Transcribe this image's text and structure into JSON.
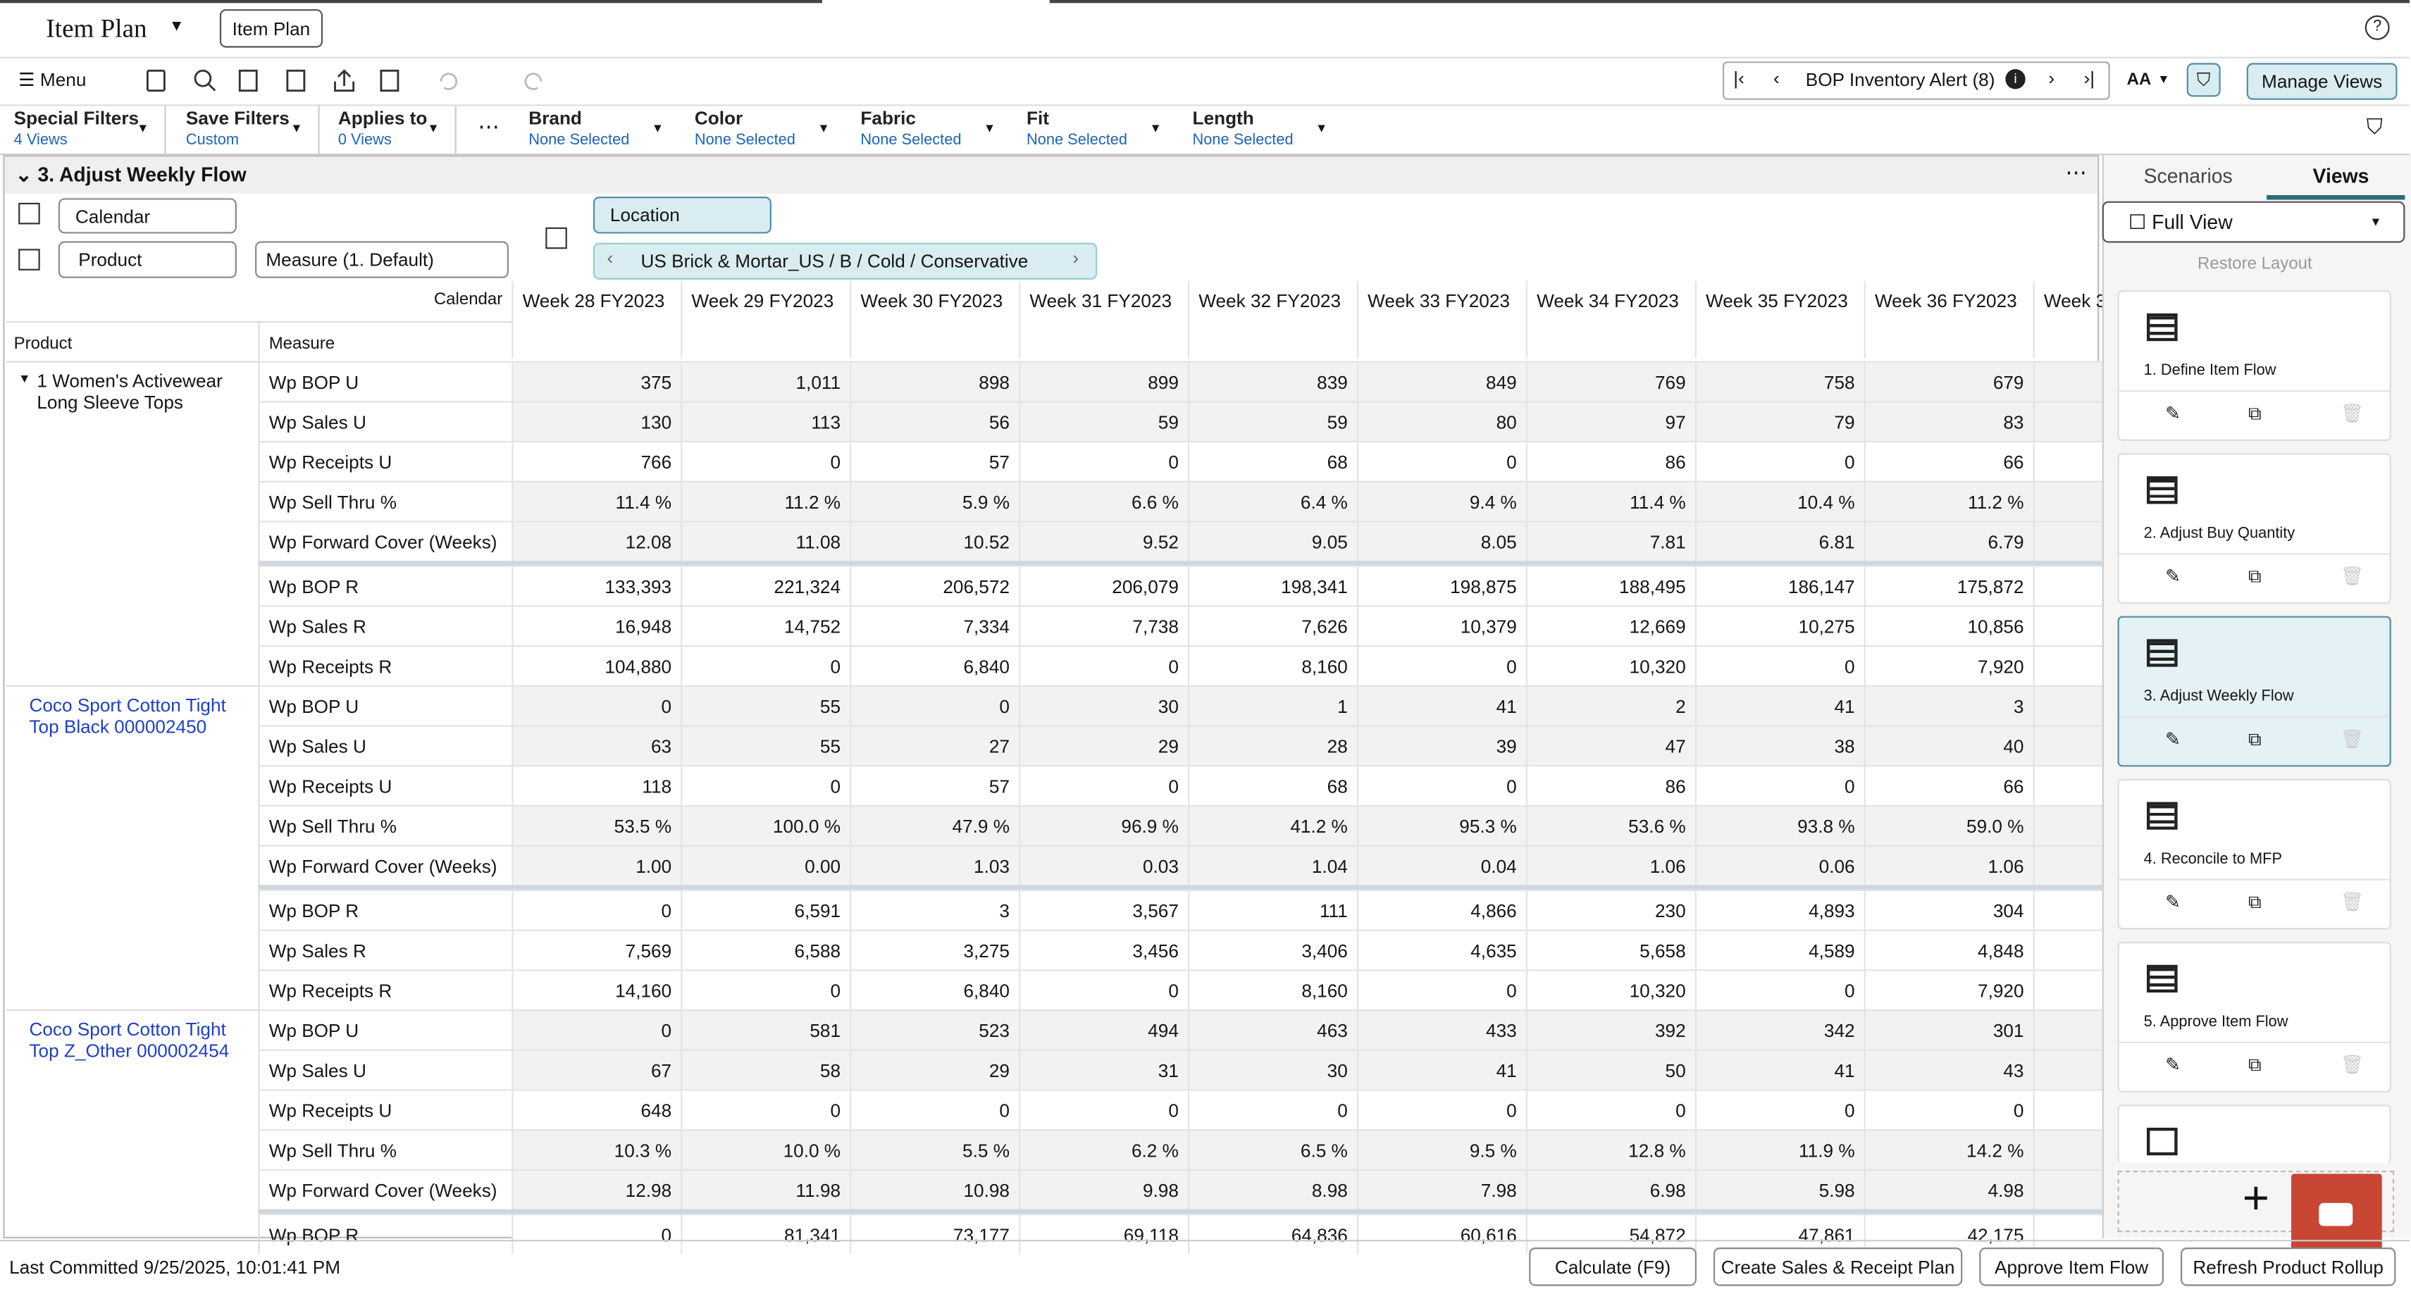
{
  "header": {
    "app_title": "Item Plan",
    "tab": "Item Plan"
  },
  "toolbar": {
    "menu": "Menu",
    "alert": "BOP Inventory Alert (8)",
    "font_size": "AA",
    "manage_views": "Manage Views"
  },
  "filters": [
    {
      "label": "Special Filters",
      "value": "4 Views"
    },
    {
      "label": "Save Filters",
      "value": "Custom"
    },
    {
      "label": "Applies to",
      "value": "0 Views"
    },
    {
      "label": "Brand",
      "value": "None Selected"
    },
    {
      "label": "Color",
      "value": "None Selected"
    },
    {
      "label": "Fabric",
      "value": "None Selected"
    },
    {
      "label": "Fit",
      "value": "None Selected"
    },
    {
      "label": "Length",
      "value": "None Selected"
    }
  ],
  "view": {
    "title": "3. Adjust Weekly Flow",
    "calendar": "Calendar",
    "product": "Product",
    "measure": "Measure (1. Default)",
    "location": "Location",
    "location_path": "US Brick & Mortar_US / B / Cold / Conservative"
  },
  "grid": {
    "corner": "Calendar",
    "product_header": "Product",
    "measure_header": "Measure",
    "weeks": [
      "Week 28 FY2023",
      "Week 29 FY2023",
      "Week 30 FY2023",
      "Week 31 FY2023",
      "Week 32 FY2023",
      "Week 33 FY2023",
      "Week 34 FY2023",
      "Week 35 FY2023",
      "Week 36 FY2023",
      "Week 3"
    ],
    "groups": [
      {
        "product": "1 Women's Activewear Long Sleeve Tops",
        "rows": [
          {
            "measure": "Wp BOP U",
            "values": [
              "375",
              "1,011",
              "898",
              "899",
              "839",
              "849",
              "769",
              "758",
              "679"
            ]
          },
          {
            "measure": "Wp Sales U",
            "values": [
              "130",
              "113",
              "56",
              "59",
              "59",
              "80",
              "97",
              "79",
              "83"
            ]
          },
          {
            "measure": "Wp Receipts U",
            "values": [
              "766",
              "0",
              "57",
              "0",
              "68",
              "0",
              "86",
              "0",
              "66"
            ]
          },
          {
            "measure": "Wp Sell Thru %",
            "values": [
              "11.4 %",
              "11.2 %",
              "5.9 %",
              "6.6 %",
              "6.4 %",
              "9.4 %",
              "11.4 %",
              "10.4 %",
              "11.2 %"
            ]
          },
          {
            "measure": "Wp Forward Cover (Weeks)",
            "values": [
              "12.08",
              "11.08",
              "10.52",
              "9.52",
              "9.05",
              "8.05",
              "7.81",
              "6.81",
              "6.79"
            ]
          },
          {
            "measure": "Wp BOP R",
            "values": [
              "133,393",
              "221,324",
              "206,572",
              "206,079",
              "198,341",
              "198,875",
              "188,495",
              "186,147",
              "175,872"
            ]
          },
          {
            "measure": "Wp Sales R",
            "values": [
              "16,948",
              "14,752",
              "7,334",
              "7,738",
              "7,626",
              "10,379",
              "12,669",
              "10,275",
              "10,856"
            ]
          },
          {
            "measure": "Wp Receipts R",
            "values": [
              "104,880",
              "0",
              "6,840",
              "0",
              "8,160",
              "0",
              "10,320",
              "0",
              "7,920"
            ]
          }
        ]
      },
      {
        "product": "Coco Sport Cotton Tight Top Black 000002450",
        "rows": [
          {
            "measure": "Wp BOP U",
            "values": [
              "0",
              "55",
              "0",
              "30",
              "1",
              "41",
              "2",
              "41",
              "3"
            ]
          },
          {
            "measure": "Wp Sales U",
            "values": [
              "63",
              "55",
              "27",
              "29",
              "28",
              "39",
              "47",
              "38",
              "40"
            ]
          },
          {
            "measure": "Wp Receipts U",
            "values": [
              "118",
              "0",
              "57",
              "0",
              "68",
              "0",
              "86",
              "0",
              "66"
            ]
          },
          {
            "measure": "Wp Sell Thru %",
            "values": [
              "53.5 %",
              "100.0 %",
              "47.9 %",
              "96.9 %",
              "41.2 %",
              "95.3 %",
              "53.6 %",
              "93.8 %",
              "59.0 %"
            ]
          },
          {
            "measure": "Wp Forward Cover (Weeks)",
            "values": [
              "1.00",
              "0.00",
              "1.03",
              "0.03",
              "1.04",
              "0.04",
              "1.06",
              "0.06",
              "1.06"
            ]
          },
          {
            "measure": "Wp BOP R",
            "values": [
              "0",
              "6,591",
              "3",
              "3,567",
              "111",
              "4,866",
              "230",
              "4,893",
              "304"
            ]
          },
          {
            "measure": "Wp Sales R",
            "values": [
              "7,569",
              "6,588",
              "3,275",
              "3,456",
              "3,406",
              "4,635",
              "5,658",
              "4,589",
              "4,848"
            ]
          },
          {
            "measure": "Wp Receipts R",
            "values": [
              "14,160",
              "0",
              "6,840",
              "0",
              "8,160",
              "0",
              "10,320",
              "0",
              "7,920"
            ]
          }
        ]
      },
      {
        "product": "Coco Sport Cotton Tight Top Z_Other 000002454",
        "rows": [
          {
            "measure": "Wp BOP U",
            "values": [
              "0",
              "581",
              "523",
              "494",
              "463",
              "433",
              "392",
              "342",
              "301"
            ]
          },
          {
            "measure": "Wp Sales U",
            "values": [
              "67",
              "58",
              "29",
              "31",
              "30",
              "41",
              "50",
              "41",
              "43"
            ]
          },
          {
            "measure": "Wp Receipts U",
            "values": [
              "648",
              "0",
              "0",
              "0",
              "0",
              "0",
              "0",
              "0",
              "0"
            ]
          },
          {
            "measure": "Wp Sell Thru %",
            "values": [
              "10.3 %",
              "10.0 %",
              "5.5 %",
              "6.2 %",
              "6.5 %",
              "9.5 %",
              "12.8 %",
              "11.9 %",
              "14.2 %"
            ]
          },
          {
            "measure": "Wp Forward Cover (Weeks)",
            "values": [
              "12.98",
              "11.98",
              "10.98",
              "9.98",
              "8.98",
              "7.98",
              "6.98",
              "5.98",
              "4.98"
            ]
          },
          {
            "measure": "Wp BOP R",
            "values": [
              "0",
              "81,341",
              "73,177",
              "69,118",
              "64,836",
              "60,616",
              "54,872",
              "47,861",
              "42,175"
            ]
          }
        ]
      }
    ]
  },
  "panel": {
    "tabs": [
      "Scenarios",
      "Views"
    ],
    "view_select": "Full View",
    "restore": "Restore Layout",
    "cards": [
      "1. Define Item Flow",
      "2. Adjust Buy Quantity",
      "3. Adjust Weekly Flow",
      "4. Reconcile to MFP",
      "5. Approve Item Flow"
    ]
  },
  "footer": {
    "status": "Last Committed 9/25/2025, 10:01:41 PM",
    "buttons": [
      "Calculate (F9)",
      "Create Sales & Receipt Plan",
      "Approve Item Flow",
      "Refresh Product Rollup"
    ]
  }
}
